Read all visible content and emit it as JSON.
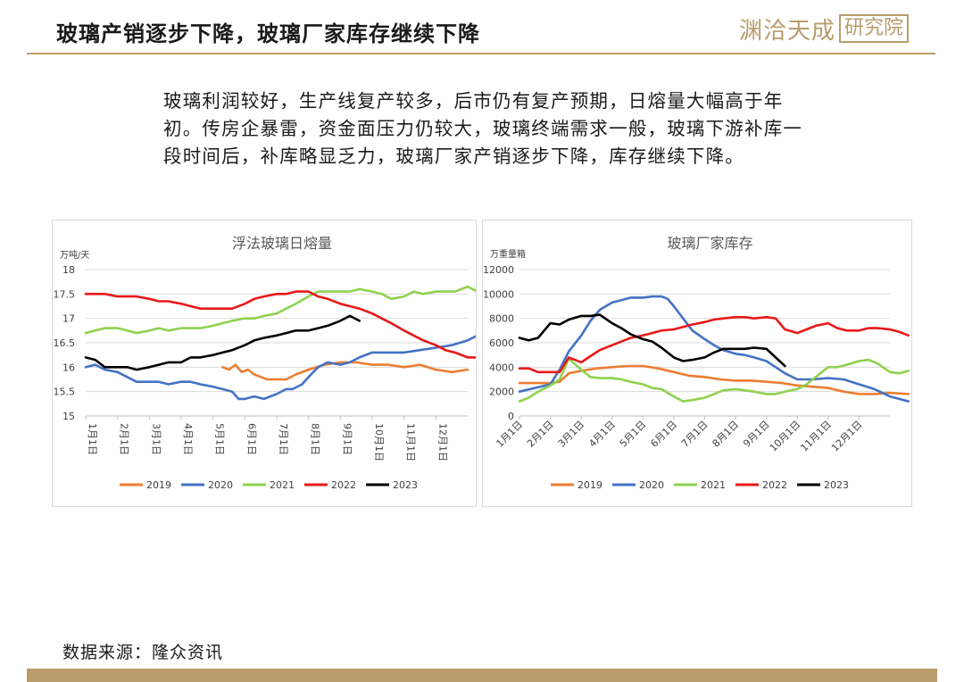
{
  "header": {
    "title": "玻璃产销逐步下降，玻璃厂家库存继续下降"
  },
  "logo": {
    "brand": "渊洽天成",
    "box": "研究院"
  },
  "summary": "玻璃利润较好，生产线复产较多，后市仍有复产预期，日熔量大幅高于年初。传房企暴雷，资金面压力仍较大，玻璃终端需求一般，玻璃下游补库一段时间后，补库略显乏力，玻璃厂家产销逐步下降，库存继续下降。",
  "source": "数据来源：隆众资讯",
  "colors": {
    "2019": "#ED7D31",
    "2020": "#4472C4",
    "2021": "#8FD14F",
    "2022": "#E81818",
    "2023": "#000000",
    "accent": "#B99C6C"
  },
  "chart_data": [
    {
      "type": "line",
      "title": "浮法玻璃日熔量",
      "ylabel": "万吨/天",
      "ylim": [
        15,
        18
      ],
      "yticks": [
        "18",
        "17.5",
        "17",
        "16.5",
        "16",
        "15.5",
        "15"
      ],
      "xticks": [
        "1月1日",
        "2月1日",
        "3月1日",
        "4月1日",
        "5月1日",
        "6月1日",
        "7月1日",
        "8月1日",
        "9月1日",
        "10月1日",
        "11月1日",
        "12月1日"
      ],
      "grid": true,
      "legend_position": "bottom",
      "series": [
        {
          "name": "2019",
          "x": [
            4.3,
            4.5,
            4.7,
            4.9,
            5.1,
            5.3,
            5.5,
            5.7,
            6.0,
            6.3,
            6.6,
            7.0,
            7.5,
            8.0,
            8.5,
            9.0,
            9.5,
            10.0,
            10.5,
            11.0,
            11.5,
            12.0
          ],
          "y": [
            16.0,
            15.95,
            16.05,
            15.9,
            15.95,
            15.85,
            15.8,
            15.75,
            15.75,
            15.75,
            15.85,
            15.95,
            16.05,
            16.1,
            16.1,
            16.05,
            16.05,
            16.0,
            16.05,
            15.95,
            15.9,
            15.95
          ]
        },
        {
          "name": "2020",
          "x": [
            0,
            0.3,
            0.6,
            1.0,
            1.3,
            1.6,
            2.0,
            2.3,
            2.6,
            3.0,
            3.3,
            3.6,
            4.0,
            4.3,
            4.6,
            4.8,
            5.0,
            5.3,
            5.6,
            6.0,
            6.3,
            6.5,
            6.8,
            7.0,
            7.3,
            7.6,
            8.0,
            8.3,
            8.6,
            9.0,
            9.5,
            10.0,
            10.5,
            11.0,
            11.5,
            12.0,
            12.3,
            12.6
          ],
          "y": [
            16.0,
            16.05,
            15.95,
            15.9,
            15.8,
            15.7,
            15.7,
            15.7,
            15.65,
            15.7,
            15.7,
            15.65,
            15.6,
            15.55,
            15.5,
            15.35,
            15.35,
            15.4,
            15.35,
            15.45,
            15.55,
            15.55,
            15.65,
            15.8,
            16.0,
            16.1,
            16.05,
            16.1,
            16.2,
            16.3,
            16.3,
            16.3,
            16.35,
            16.4,
            16.45,
            16.55,
            16.65,
            16.7
          ]
        },
        {
          "name": "2021",
          "x": [
            0,
            0.3,
            0.6,
            1.0,
            1.3,
            1.6,
            2.0,
            2.3,
            2.6,
            3.0,
            3.3,
            3.6,
            4.0,
            4.3,
            4.6,
            5.0,
            5.3,
            5.6,
            6.0,
            6.3,
            6.6,
            7.0,
            7.3,
            7.6,
            8.0,
            8.3,
            8.6,
            9.0,
            9.3,
            9.6,
            10.0,
            10.3,
            10.6,
            11.0,
            11.3,
            11.6,
            12.0,
            12.3,
            12.6
          ],
          "y": [
            16.7,
            16.75,
            16.8,
            16.8,
            16.75,
            16.7,
            16.75,
            16.8,
            16.75,
            16.8,
            16.8,
            16.8,
            16.85,
            16.9,
            16.95,
            17.0,
            17.0,
            17.05,
            17.1,
            17.2,
            17.3,
            17.45,
            17.55,
            17.55,
            17.55,
            17.55,
            17.6,
            17.55,
            17.5,
            17.4,
            17.45,
            17.55,
            17.5,
            17.55,
            17.55,
            17.55,
            17.65,
            17.55,
            17.5
          ]
        },
        {
          "name": "2022",
          "x": [
            0,
            0.3,
            0.6,
            1.0,
            1.3,
            1.6,
            2.0,
            2.3,
            2.6,
            3.0,
            3.3,
            3.6,
            4.0,
            4.3,
            4.6,
            5.0,
            5.3,
            5.6,
            6.0,
            6.3,
            6.6,
            7.0,
            7.3,
            7.6,
            8.0,
            8.3,
            8.6,
            9.0,
            9.3,
            9.6,
            10.0,
            10.3,
            10.6,
            11.0,
            11.3,
            11.6,
            12.0,
            12.3,
            12.6
          ],
          "y": [
            17.5,
            17.5,
            17.5,
            17.45,
            17.45,
            17.45,
            17.4,
            17.35,
            17.35,
            17.3,
            17.25,
            17.2,
            17.2,
            17.2,
            17.2,
            17.3,
            17.4,
            17.45,
            17.5,
            17.5,
            17.55,
            17.55,
            17.45,
            17.4,
            17.3,
            17.25,
            17.2,
            17.1,
            17.0,
            16.9,
            16.75,
            16.65,
            16.55,
            16.45,
            16.35,
            16.3,
            16.2,
            16.2,
            16.2
          ]
        },
        {
          "name": "2023",
          "x": [
            0,
            0.3,
            0.6,
            1.0,
            1.3,
            1.6,
            2.0,
            2.3,
            2.6,
            3.0,
            3.3,
            3.6,
            4.0,
            4.3,
            4.6,
            5.0,
            5.3,
            5.6,
            6.0,
            6.3,
            6.6,
            7.0,
            7.3,
            7.6,
            8.0,
            8.3,
            8.6
          ],
          "y": [
            16.2,
            16.15,
            16.0,
            16.0,
            16.0,
            15.95,
            16.0,
            16.05,
            16.1,
            16.1,
            16.2,
            16.2,
            16.25,
            16.3,
            16.35,
            16.45,
            16.55,
            16.6,
            16.65,
            16.7,
            16.75,
            16.75,
            16.8,
            16.85,
            16.95,
            17.05,
            16.95
          ]
        }
      ]
    },
    {
      "type": "line",
      "title": "玻璃厂家库存",
      "ylabel": "万重量箱",
      "ylim": [
        0,
        12000
      ],
      "yticks": [
        "12000",
        "10000",
        "8000",
        "6000",
        "4000",
        "2000",
        "0"
      ],
      "xticks": [
        "1月1日",
        "2月1日",
        "3月1日",
        "4月1日",
        "5月1日",
        "6月1日",
        "7月1日",
        "8月1日",
        "9月1日",
        "10月1日",
        "11月1日",
        "12月1日"
      ],
      "grid": true,
      "legend_position": "bottom",
      "series": [
        {
          "name": "2019",
          "x": [
            0,
            0.5,
            1.0,
            1.3,
            1.6,
            2.0,
            2.5,
            3.0,
            3.5,
            4.0,
            4.5,
            5.0,
            5.5,
            6.0,
            6.5,
            7.0,
            7.5,
            8.0,
            8.5,
            9.0,
            9.5,
            10.0,
            10.5,
            11.0,
            11.5,
            12.0,
            12.6
          ],
          "y": [
            2700,
            2700,
            2700,
            2800,
            3500,
            3700,
            3900,
            4000,
            4100,
            4100,
            3900,
            3600,
            3300,
            3200,
            3000,
            2900,
            2900,
            2800,
            2700,
            2500,
            2400,
            2300,
            2000,
            1800,
            1800,
            1900,
            1800
          ]
        },
        {
          "name": "2020",
          "x": [
            0,
            0.5,
            1.0,
            1.3,
            1.6,
            2.0,
            2.3,
            2.6,
            3.0,
            3.3,
            3.6,
            4.0,
            4.3,
            4.6,
            4.8,
            5.0,
            5.3,
            5.6,
            6.0,
            6.3,
            6.6,
            7.0,
            7.3,
            7.6,
            8.0,
            8.3,
            8.6,
            9.0,
            9.5,
            10.0,
            10.5,
            11.0,
            11.5,
            12.0,
            12.6
          ],
          "y": [
            2000,
            2300,
            2600,
            3800,
            5300,
            6600,
            7800,
            8700,
            9300,
            9500,
            9700,
            9700,
            9800,
            9800,
            9600,
            9000,
            8000,
            7000,
            6300,
            5800,
            5400,
            5100,
            5000,
            4800,
            4500,
            4000,
            3500,
            3000,
            3000,
            3100,
            3000,
            2600,
            2200,
            1600,
            1200
          ]
        },
        {
          "name": "2021",
          "x": [
            0,
            0.3,
            0.6,
            1.0,
            1.3,
            1.6,
            2.0,
            2.3,
            2.6,
            3.0,
            3.3,
            3.6,
            4.0,
            4.3,
            4.6,
            5.0,
            5.3,
            5.6,
            6.0,
            6.3,
            6.6,
            7.0,
            7.3,
            7.6,
            8.0,
            8.3,
            8.6,
            9.0,
            9.3,
            9.6,
            10.0,
            10.3,
            10.6,
            11.0,
            11.3,
            11.6,
            12.0,
            12.3,
            12.6
          ],
          "y": [
            1200,
            1500,
            2000,
            2500,
            3000,
            4700,
            3800,
            3200,
            3100,
            3100,
            3000,
            2800,
            2600,
            2300,
            2200,
            1600,
            1200,
            1300,
            1500,
            1800,
            2100,
            2200,
            2100,
            2000,
            1800,
            1800,
            2000,
            2200,
            2600,
            3200,
            4000,
            4000,
            4200,
            4500,
            4600,
            4300,
            3600,
            3500,
            3700
          ]
        },
        {
          "name": "2022",
          "x": [
            0,
            0.3,
            0.6,
            1.0,
            1.3,
            1.6,
            2.0,
            2.3,
            2.6,
            3.0,
            3.3,
            3.6,
            4.0,
            4.3,
            4.6,
            5.0,
            5.3,
            5.6,
            6.0,
            6.3,
            6.6,
            7.0,
            7.3,
            7.6,
            8.0,
            8.3,
            8.6,
            9.0,
            9.3,
            9.6,
            10.0,
            10.3,
            10.6,
            11.0,
            11.3,
            11.6,
            12.0,
            12.3,
            12.6
          ],
          "y": [
            3900,
            3900,
            3600,
            3600,
            3600,
            4800,
            4400,
            4900,
            5400,
            5800,
            6100,
            6400,
            6600,
            6800,
            7000,
            7100,
            7300,
            7500,
            7700,
            7900,
            8000,
            8100,
            8100,
            8000,
            8100,
            8000,
            7100,
            6800,
            7100,
            7400,
            7600,
            7200,
            7000,
            7000,
            7200,
            7200,
            7100,
            6900,
            6600
          ]
        },
        {
          "name": "2023",
          "x": [
            0,
            0.3,
            0.6,
            1.0,
            1.3,
            1.6,
            2.0,
            2.3,
            2.6,
            3.0,
            3.3,
            3.6,
            4.0,
            4.3,
            4.6,
            5.0,
            5.3,
            5.6,
            6.0,
            6.3,
            6.6,
            7.0,
            7.3,
            7.6,
            8.0,
            8.3,
            8.6
          ],
          "y": [
            6400,
            6200,
            6400,
            7600,
            7500,
            7900,
            8200,
            8200,
            8300,
            7600,
            7200,
            6700,
            6300,
            6100,
            5600,
            4800,
            4500,
            4600,
            4800,
            5200,
            5500,
            5500,
            5500,
            5600,
            5500,
            4800,
            4100
          ]
        }
      ]
    }
  ]
}
